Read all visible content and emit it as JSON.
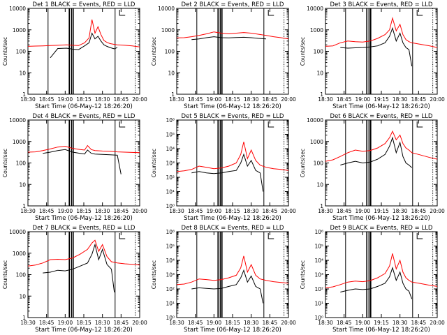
{
  "colors": {
    "events": "#000000",
    "lld": "#ff0000",
    "axes": "#000000",
    "background": "#ffffff"
  },
  "chart_data": [
    {
      "type": "line",
      "title": "Det 1 BLACK = Events, RED = LLD",
      "ylabel": "Counts/sec",
      "xlabel": "Start Time (06-May-12 18:26:20)",
      "yscale": "log",
      "ylim": [
        1,
        10000
      ],
      "ytick_labels": [
        "1",
        "10",
        "100",
        "1000",
        "10000"
      ],
      "xtick_labels": [
        "18:30",
        "18:45",
        "19:00",
        "18:15",
        "18:30",
        "18:45",
        "20:00"
      ],
      "series": [
        {
          "name": "BLACK = Events",
          "x": [
            0,
            10,
            30,
            40,
            52,
            60,
            68,
            76,
            82,
            86,
            90,
            94,
            98,
            102,
            106,
            110,
            116,
            120
          ],
          "y": [
            null,
            null,
            50,
            135,
            140,
            125,
            120,
            180,
            250,
            700,
            380,
            500,
            300,
            200,
            170,
            150,
            130,
            150
          ]
        },
        {
          "name": "RED = LLD",
          "x": [
            0,
            10,
            20,
            30,
            40,
            52,
            60,
            68,
            76,
            82,
            86,
            90,
            94,
            98,
            102,
            106,
            110,
            116,
            120,
            130,
            140,
            150
          ],
          "y": [
            170,
            175,
            180,
            185,
            190,
            200,
            190,
            185,
            250,
            420,
            3000,
            700,
            1400,
            600,
            320,
            260,
            230,
            210,
            200,
            190,
            180,
            160
          ]
        }
      ]
    },
    {
      "type": "line",
      "title": "Det 2 BLACK = Events, RED = LLD",
      "ylabel": "Counts/sec",
      "xlabel": "Start Time (06-May-12 18:26:20)",
      "yscale": "log",
      "ylim": [
        1,
        10000
      ],
      "ytick_labels": [
        "1",
        "10",
        "100",
        "1000",
        "10000"
      ],
      "xtick_labels": [
        "18:30",
        "18:45",
        "19:00",
        "18:15",
        "18:30",
        "18:45",
        "20:00"
      ],
      "series": [
        {
          "name": "BLACK = Events",
          "x": [
            0,
            10,
            20,
            30,
            40,
            50,
            60,
            70,
            80,
            90,
            100,
            110,
            120
          ],
          "y": [
            null,
            null,
            350,
            380,
            430,
            480,
            430,
            420,
            440,
            450,
            430,
            400,
            380
          ]
        },
        {
          "name": "RED = LLD",
          "x": [
            0,
            10,
            20,
            30,
            40,
            50,
            60,
            70,
            80,
            90,
            100,
            110,
            120,
            130,
            140,
            150
          ],
          "y": [
            420,
            430,
            480,
            550,
            650,
            800,
            700,
            650,
            700,
            750,
            700,
            620,
            550,
            480,
            430,
            380
          ]
        }
      ]
    },
    {
      "type": "line",
      "title": "Det 3 BLACK = Events, RED = LLD",
      "ylabel": "Counts/sec",
      "xlabel": "Start Time (06-May-12 18:26:20)",
      "yscale": "log",
      "ylim": [
        1,
        10000
      ],
      "ytick_labels": [
        "1",
        "10",
        "100",
        "1000",
        "10000"
      ],
      "xtick_labels": [
        "18:30",
        "18:45",
        "19:00",
        "19:15",
        "18:30",
        "18:45",
        "20:00"
      ],
      "series": [
        {
          "name": "BLACK = Events",
          "x": [
            0,
            10,
            20,
            30,
            40,
            50,
            60,
            70,
            80,
            86,
            90,
            95,
            100,
            104,
            108,
            112,
            116
          ],
          "y": [
            null,
            null,
            150,
            140,
            145,
            150,
            160,
            180,
            250,
            500,
            1200,
            300,
            700,
            250,
            150,
            120,
            20
          ]
        },
        {
          "name": "RED = LLD",
          "x": [
            0,
            10,
            20,
            30,
            40,
            50,
            60,
            70,
            80,
            86,
            90,
            95,
            100,
            104,
            108,
            112,
            116,
            125,
            140,
            150
          ],
          "y": [
            170,
            180,
            250,
            300,
            280,
            270,
            300,
            400,
            600,
            1000,
            3500,
            900,
            1800,
            600,
            350,
            280,
            250,
            220,
            180,
            150
          ]
        }
      ]
    },
    {
      "type": "line",
      "title": "Det 4 BLACK = Events, RED = LLD",
      "ylabel": "Counts/sec",
      "xlabel": "Start Time (06-May-12 18:26:20)",
      "yscale": "log",
      "ylim": [
        1,
        10000
      ],
      "ytick_labels": [
        "1",
        "10",
        "100",
        "1000",
        "10000"
      ],
      "xtick_labels": [
        "18:30",
        "18:45",
        "19:00",
        "18:15",
        "18:30",
        "18:45",
        "20:00"
      ],
      "series": [
        {
          "name": "BLACK = Events",
          "x": [
            0,
            10,
            20,
            30,
            40,
            50,
            60,
            70,
            76,
            80,
            85,
            90,
            100,
            110,
            120,
            125
          ],
          "y": [
            null,
            null,
            280,
            320,
            380,
            420,
            320,
            280,
            260,
            400,
            280,
            260,
            250,
            240,
            230,
            30
          ]
        },
        {
          "name": "RED = LLD",
          "x": [
            0,
            10,
            20,
            30,
            40,
            50,
            60,
            70,
            76,
            80,
            85,
            90,
            100,
            110,
            120,
            130,
            140,
            150
          ],
          "y": [
            320,
            330,
            380,
            450,
            550,
            600,
            480,
            420,
            400,
            650,
            420,
            380,
            360,
            350,
            330,
            320,
            310,
            300
          ]
        }
      ]
    },
    {
      "type": "line",
      "title": "Det 5 BLACK = Events, RED = LLD",
      "ylabel": "Counts/sec",
      "xlabel": "Start Time (06-May-12 18:26:20)",
      "yscale": "log",
      "ylim": [
        1,
        1000000
      ],
      "ytick_labels": [
        "10⁰",
        "10¹",
        "10²",
        "10³",
        "10⁴",
        "10⁵",
        "10⁶"
      ],
      "xtick_labels": [
        "18:30",
        "18:45",
        "19:00",
        "18:15",
        "18:30",
        "18:45",
        "20:00"
      ],
      "series": [
        {
          "name": "BLACK = Events",
          "x": [
            0,
            10,
            20,
            30,
            40,
            50,
            60,
            70,
            80,
            86,
            90,
            95,
            100,
            106,
            112,
            116
          ],
          "y": [
            null,
            null,
            200,
            250,
            200,
            180,
            200,
            250,
            300,
            1000,
            4000,
            600,
            1500,
            300,
            200,
            10
          ]
        },
        {
          "name": "RED = LLD",
          "x": [
            0,
            10,
            20,
            30,
            40,
            50,
            60,
            70,
            80,
            86,
            90,
            95,
            100,
            106,
            112,
            120,
            130,
            140,
            150
          ],
          "y": [
            250,
            280,
            350,
            600,
            500,
            400,
            450,
            600,
            1000,
            4000,
            30000,
            2000,
            8000,
            1500,
            700,
            500,
            400,
            350,
            300
          ]
        }
      ]
    },
    {
      "type": "line",
      "title": "Det 6 BLACK = Events, RED = LLD",
      "ylabel": "Counts/sec",
      "xlabel": "Start Time (06-May-12 18:26:20)",
      "yscale": "log",
      "ylim": [
        1,
        10000
      ],
      "ytick_labels": [
        "1",
        "10",
        "100",
        "1000",
        "10000"
      ],
      "xtick_labels": [
        "18:30",
        "18:45",
        "19:00",
        "19:15",
        "18:30",
        "18:45",
        "20:00"
      ],
      "series": [
        {
          "name": "BLACK = Events",
          "x": [
            0,
            10,
            20,
            30,
            40,
            50,
            60,
            70,
            80,
            86,
            90,
            95,
            100,
            104,
            108,
            112,
            116
          ],
          "y": [
            null,
            null,
            80,
            100,
            120,
            100,
            110,
            150,
            250,
            600,
            1500,
            300,
            900,
            200,
            100,
            80,
            60
          ]
        },
        {
          "name": "RED = LLD",
          "x": [
            0,
            10,
            20,
            30,
            40,
            50,
            60,
            70,
            80,
            86,
            90,
            95,
            100,
            104,
            108,
            112,
            116,
            125,
            140,
            150
          ],
          "y": [
            120,
            140,
            200,
            300,
            400,
            350,
            380,
            500,
            800,
            1500,
            3000,
            1200,
            2000,
            800,
            500,
            400,
            300,
            250,
            180,
            150
          ]
        }
      ]
    },
    {
      "type": "line",
      "title": "Det 7 BLACK = Events, RED = LLD",
      "ylabel": "Counts/sec",
      "xlabel": "Start Time (06-May-12 18:26:20)",
      "yscale": "log",
      "ylim": [
        1,
        10000
      ],
      "ytick_labels": [
        "1",
        "10",
        "100",
        "1000",
        "10000"
      ],
      "xtick_labels": [
        "18:30",
        "18:45",
        "19:00",
        "18:15",
        "18:30",
        "18:45",
        "20:00"
      ],
      "series": [
        {
          "name": "BLACK = Events",
          "x": [
            0,
            10,
            20,
            30,
            40,
            50,
            60,
            70,
            80,
            86,
            90,
            95,
            100,
            106,
            112,
            116
          ],
          "y": [
            null,
            null,
            120,
            130,
            160,
            150,
            180,
            250,
            350,
            900,
            2500,
            500,
            1500,
            300,
            180,
            15
          ]
        },
        {
          "name": "RED = LLD",
          "x": [
            0,
            10,
            20,
            30,
            40,
            50,
            60,
            70,
            80,
            86,
            90,
            95,
            100,
            106,
            112,
            120,
            130,
            140,
            150
          ],
          "y": [
            250,
            280,
            350,
            500,
            520,
            500,
            600,
            900,
            1500,
            3000,
            4000,
            1200,
            2500,
            700,
            400,
            350,
            320,
            300,
            280
          ]
        }
      ]
    },
    {
      "type": "line",
      "title": "Det 8 BLACK = Events, RED = LLD",
      "ylabel": "Counts/sec",
      "xlabel": "Start Time (06-May-12 18:26:20)",
      "yscale": "log",
      "ylim": [
        1,
        1000000
      ],
      "ytick_labels": [
        "10⁰",
        "10¹",
        "10²",
        "10³",
        "10⁴",
        "10⁵",
        "10⁶"
      ],
      "xtick_labels": [
        "18:30",
        "18:45",
        "19:00",
        "18:15",
        "18:30",
        "18:45",
        "20:00"
      ],
      "series": [
        {
          "name": "BLACK = Events",
          "x": [
            0,
            10,
            20,
            30,
            40,
            50,
            60,
            70,
            80,
            86,
            90,
            95,
            100,
            106,
            112,
            116
          ],
          "y": [
            null,
            null,
            100,
            120,
            110,
            100,
            110,
            150,
            200,
            600,
            2000,
            300,
            800,
            150,
            100,
            10
          ]
        },
        {
          "name": "RED = LLD",
          "x": [
            0,
            10,
            20,
            30,
            40,
            50,
            60,
            70,
            80,
            86,
            90,
            95,
            100,
            106,
            112,
            120,
            130,
            140,
            150
          ],
          "y": [
            200,
            220,
            300,
            500,
            450,
            400,
            450,
            600,
            900,
            3000,
            20000,
            1500,
            5000,
            900,
            500,
            400,
            320,
            280,
            250
          ]
        }
      ]
    },
    {
      "type": "line",
      "title": "Det 9 BLACK = Events, RED = LLD",
      "ylabel": "Counts/sec",
      "xlabel": "Start Time (06-May-12 18:26:20)",
      "yscale": "log",
      "ylim": [
        1,
        1000000
      ],
      "ytick_labels": [
        "10⁰",
        "10¹",
        "10²",
        "10³",
        "10⁴",
        "10⁵",
        "10⁶"
      ],
      "xtick_labels": [
        "18:30",
        "18:45",
        "19:00",
        "19:15",
        "18:30",
        "18:45",
        "20:00"
      ],
      "series": [
        {
          "name": "BLACK = Events",
          "x": [
            0,
            10,
            20,
            30,
            40,
            50,
            60,
            70,
            80,
            86,
            90,
            95,
            100,
            104,
            108,
            112,
            116
          ],
          "y": [
            null,
            null,
            60,
            80,
            100,
            90,
            100,
            150,
            250,
            700,
            3000,
            400,
            1500,
            250,
            100,
            70,
            20
          ]
        },
        {
          "name": "RED = LLD",
          "x": [
            0,
            10,
            20,
            30,
            40,
            50,
            60,
            70,
            80,
            86,
            90,
            95,
            100,
            104,
            108,
            112,
            116,
            125,
            140,
            150
          ],
          "y": [
            120,
            140,
            200,
            300,
            350,
            320,
            380,
            600,
            1200,
            4000,
            30000,
            2500,
            10000,
            1500,
            600,
            400,
            300,
            250,
            180,
            150
          ]
        }
      ]
    }
  ]
}
